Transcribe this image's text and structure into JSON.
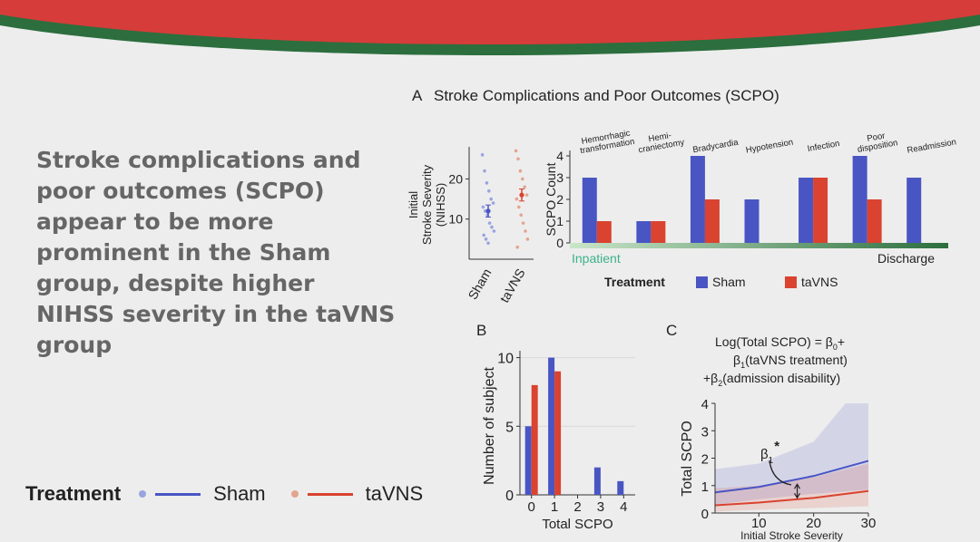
{
  "headline": "Stroke complications and poor outcomes (SCPO) appear to be more prominent in the Sham group, despite higher NIHSS severity in the taVNS group",
  "colors": {
    "sham": "#4a55c4",
    "tavns": "#d9432f",
    "header_red": "#d63c3a",
    "header_green": "#2c6e3e"
  },
  "legend_bottom": {
    "title": "Treatment",
    "items": [
      "Sham",
      "taVNS"
    ]
  },
  "panel_a": {
    "letter": "A",
    "title": "Stroke Complications and Poor Outcomes (SCPO)",
    "legend_title": "Treatment",
    "legend_items": [
      "Sham",
      "taVNS"
    ],
    "timeline_start": "Inpatient",
    "timeline_end": "Discharge"
  },
  "panel_c": {
    "letter": "C",
    "formula_lines": [
      "Log(Total SCPO) = β",
      "β",
      "+β",
      "(taVNS treatment)",
      "(admission disability)"
    ],
    "subs": [
      "0",
      "1",
      "2"
    ],
    "beta_label": "β",
    "beta_sub": "1",
    "beta_star": "*"
  },
  "chart_data": [
    {
      "type": "scatter",
      "ylabel": "Initial Stroke Severity (NIHSS)",
      "ylabel_lines": [
        "Initial",
        "Stroke Severity",
        "(NIHSS)"
      ],
      "categories": [
        "Sham",
        "taVNS"
      ],
      "ylim": [
        0,
        28
      ],
      "yticks": [
        10,
        20
      ],
      "series": [
        {
          "name": "Sham",
          "mean": 12,
          "error": [
            10.5,
            13.5
          ],
          "points": [
            26,
            22,
            19,
            17,
            15,
            14,
            13,
            12,
            11,
            9,
            8,
            7,
            6,
            5,
            4
          ]
        },
        {
          "name": "taVNS",
          "mean": 16,
          "error": [
            14.5,
            17.5
          ],
          "points": [
            27,
            25,
            22,
            20,
            18,
            16,
            15,
            13,
            11,
            9,
            7,
            5,
            3
          ]
        }
      ]
    },
    {
      "type": "bar",
      "ylabel": "SCPO Count",
      "categories": [
        "Hemorrhagic transformation",
        "Hemi-craniectomy",
        "Bradycardia",
        "Hypotension",
        "Infection",
        "Poor disposition",
        "Readmission"
      ],
      "category_lines": [
        [
          "Hemorrhagic",
          "transformation"
        ],
        [
          "Hemi-",
          "craniectomy"
        ],
        [
          "Bradycardia"
        ],
        [
          "Hypotension"
        ],
        [
          "Infection"
        ],
        [
          "Poor",
          "disposition"
        ],
        [
          "Readmission"
        ]
      ],
      "ylim": [
        0,
        4
      ],
      "yticks": [
        0,
        1,
        2,
        3,
        4
      ],
      "series": [
        {
          "name": "Sham",
          "values": [
            3,
            1,
            4,
            2,
            3,
            4,
            3
          ]
        },
        {
          "name": "taVNS",
          "values": [
            1,
            1,
            2,
            0,
            3,
            2,
            0
          ]
        }
      ]
    },
    {
      "type": "bar",
      "title": "B",
      "xlabel": "Total SCPO",
      "ylabel": "Number of subject",
      "categories": [
        "0",
        "1",
        "2",
        "3",
        "4"
      ],
      "ylim": [
        0,
        10.5
      ],
      "yticks": [
        0,
        5,
        10
      ],
      "series": [
        {
          "name": "Sham",
          "values": [
            5,
            10,
            0,
            2,
            1
          ]
        },
        {
          "name": "taVNS",
          "values": [
            8,
            9,
            0,
            0,
            0
          ]
        }
      ]
    },
    {
      "type": "line",
      "title": "C",
      "xlabel": "Initial Stroke Severity",
      "ylabel": "Total SCPO",
      "xlim": [
        2,
        30
      ],
      "ylim": [
        0,
        4
      ],
      "xticks": [
        10,
        20,
        30
      ],
      "yticks": [
        0,
        1,
        2,
        3,
        4
      ],
      "series": [
        {
          "name": "Sham",
          "x": [
            2,
            10,
            20,
            30
          ],
          "y": [
            0.75,
            0.95,
            1.35,
            1.9
          ],
          "lower": [
            0.3,
            0.5,
            0.7,
            0.85
          ],
          "upper": [
            1.6,
            1.8,
            2.6,
            5.0
          ]
        },
        {
          "name": "taVNS",
          "x": [
            2,
            10,
            20,
            30
          ],
          "y": [
            0.28,
            0.38,
            0.55,
            0.8
          ],
          "lower": [
            0.05,
            0.12,
            0.18,
            0.25
          ],
          "upper": [
            0.9,
            1.0,
            1.3,
            1.8
          ]
        }
      ]
    }
  ]
}
